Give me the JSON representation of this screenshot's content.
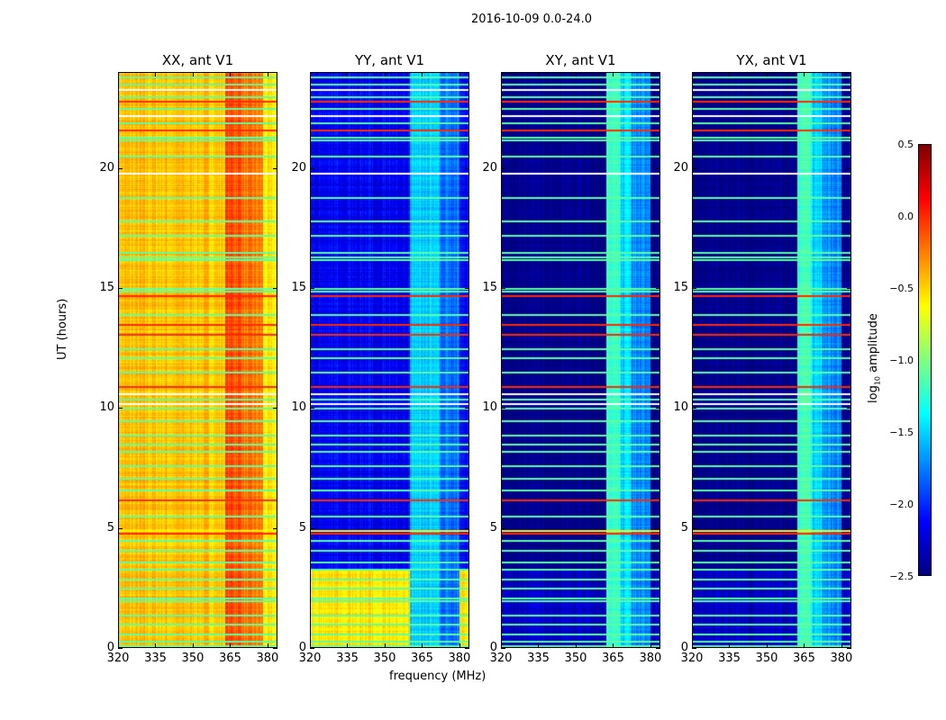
{
  "chart_data": {
    "type": "heatmap",
    "title": "2016-10-09 0.0-24.0",
    "xlabel": "frequency (MHz)",
    "ylabel": "UT (hours)",
    "xlim": [
      320,
      384
    ],
    "ylim": [
      0,
      24
    ],
    "xticks": [
      "320",
      "335",
      "350",
      "365",
      "380"
    ],
    "xtick_values": [
      320,
      335,
      350,
      365,
      380
    ],
    "yticks": [
      "0",
      "5",
      "10",
      "15",
      "20"
    ],
    "ytick_values": [
      0,
      5,
      10,
      15,
      20
    ],
    "colormap": "jet",
    "colorbar": {
      "label_main": "log",
      "label_sub": "10",
      "label_rest": " amplitude",
      "range": [
        -2.5,
        0.5
      ],
      "ticks": [
        "0.5",
        "0.0",
        "−0.5",
        "−1.0",
        "−1.5",
        "−2.0",
        "−2.5"
      ],
      "tick_values": [
        0.5,
        0.0,
        -0.5,
        -1.0,
        -1.5,
        -2.0,
        -2.5
      ]
    },
    "panels": [
      {
        "title": "XX, ant V1",
        "base": -0.45,
        "low_base": -0.45,
        "band": [
          [
            363,
            370,
            -0.1
          ],
          [
            370,
            378,
            -0.25
          ],
          [
            378,
            383,
            -0.6
          ]
        ]
      },
      {
        "title": "YY, ant V1",
        "base": -2.15,
        "low_base": -0.55,
        "band": [
          [
            360,
            372,
            -1.5
          ],
          [
            372,
            380,
            -1.8
          ]
        ]
      },
      {
        "title": "XY, ant V1",
        "base": -2.5,
        "low_base": -2.3,
        "band": [
          [
            362,
            368,
            -1.2
          ],
          [
            368,
            372,
            -1.5
          ],
          [
            372,
            380,
            -1.7
          ]
        ]
      },
      {
        "title": "YX, ant V1",
        "base": -2.5,
        "low_base": -2.3,
        "band": [
          [
            362,
            368,
            -1.2
          ],
          [
            368,
            372,
            -1.5
          ],
          [
            372,
            380,
            -1.7
          ]
        ]
      }
    ],
    "low_region_hours": [
      0,
      3.3
    ],
    "flagged_rows": [
      [
        0.1,
        -1.1
      ],
      [
        0.3,
        -1.1
      ],
      [
        0.6,
        -1.1
      ],
      [
        1.0,
        -1.1
      ],
      [
        1.4,
        -1.1
      ],
      [
        2.0,
        -1.1
      ],
      [
        2.1,
        -1.1
      ],
      [
        2.5,
        -1.1
      ],
      [
        2.9,
        -1.1
      ],
      [
        3.3,
        -1.1
      ],
      [
        3.6,
        -1.1
      ],
      [
        4.1,
        -1.1
      ],
      [
        4.5,
        -1.1
      ],
      [
        4.8,
        0.0
      ],
      [
        4.9,
        -0.6
      ],
      [
        5.5,
        -1.1
      ],
      [
        6.2,
        0.0
      ],
      [
        6.6,
        -1.1
      ],
      [
        7.1,
        -1.1
      ],
      [
        7.6,
        -1.1
      ],
      [
        8.2,
        -1.1
      ],
      [
        8.5,
        -1.1
      ],
      [
        8.9,
        -1.1
      ],
      [
        9.5,
        -1.1
      ],
      [
        10.0,
        -1.1
      ],
      [
        10.2,
        null
      ],
      [
        10.4,
        -1.1
      ],
      [
        10.6,
        null
      ],
      [
        10.9,
        0.0
      ],
      [
        11.5,
        -1.1
      ],
      [
        12.1,
        -1.1
      ],
      [
        12.5,
        -1.1
      ],
      [
        13.1,
        0.0
      ],
      [
        13.5,
        0.0
      ],
      [
        13.9,
        -1.1
      ],
      [
        14.7,
        0.0
      ],
      [
        14.9,
        -1.1
      ],
      [
        15.0,
        -1.1
      ],
      [
        16.2,
        -1.1
      ],
      [
        16.3,
        -1.1
      ],
      [
        16.5,
        -1.1
      ],
      [
        17.2,
        -1.1
      ],
      [
        17.8,
        -1.1
      ],
      [
        18.8,
        -1.1
      ],
      [
        19.8,
        null
      ],
      [
        20.5,
        -1.1
      ],
      [
        21.2,
        -1.1
      ],
      [
        21.3,
        -1.1
      ],
      [
        21.6,
        0.0
      ],
      [
        21.9,
        -1.1
      ],
      [
        22.2,
        null
      ],
      [
        22.5,
        -1.1
      ],
      [
        22.8,
        0.0
      ],
      [
        23.0,
        -1.1
      ],
      [
        23.3,
        null
      ],
      [
        23.5,
        -1.1
      ],
      [
        23.8,
        -1.1
      ]
    ]
  }
}
